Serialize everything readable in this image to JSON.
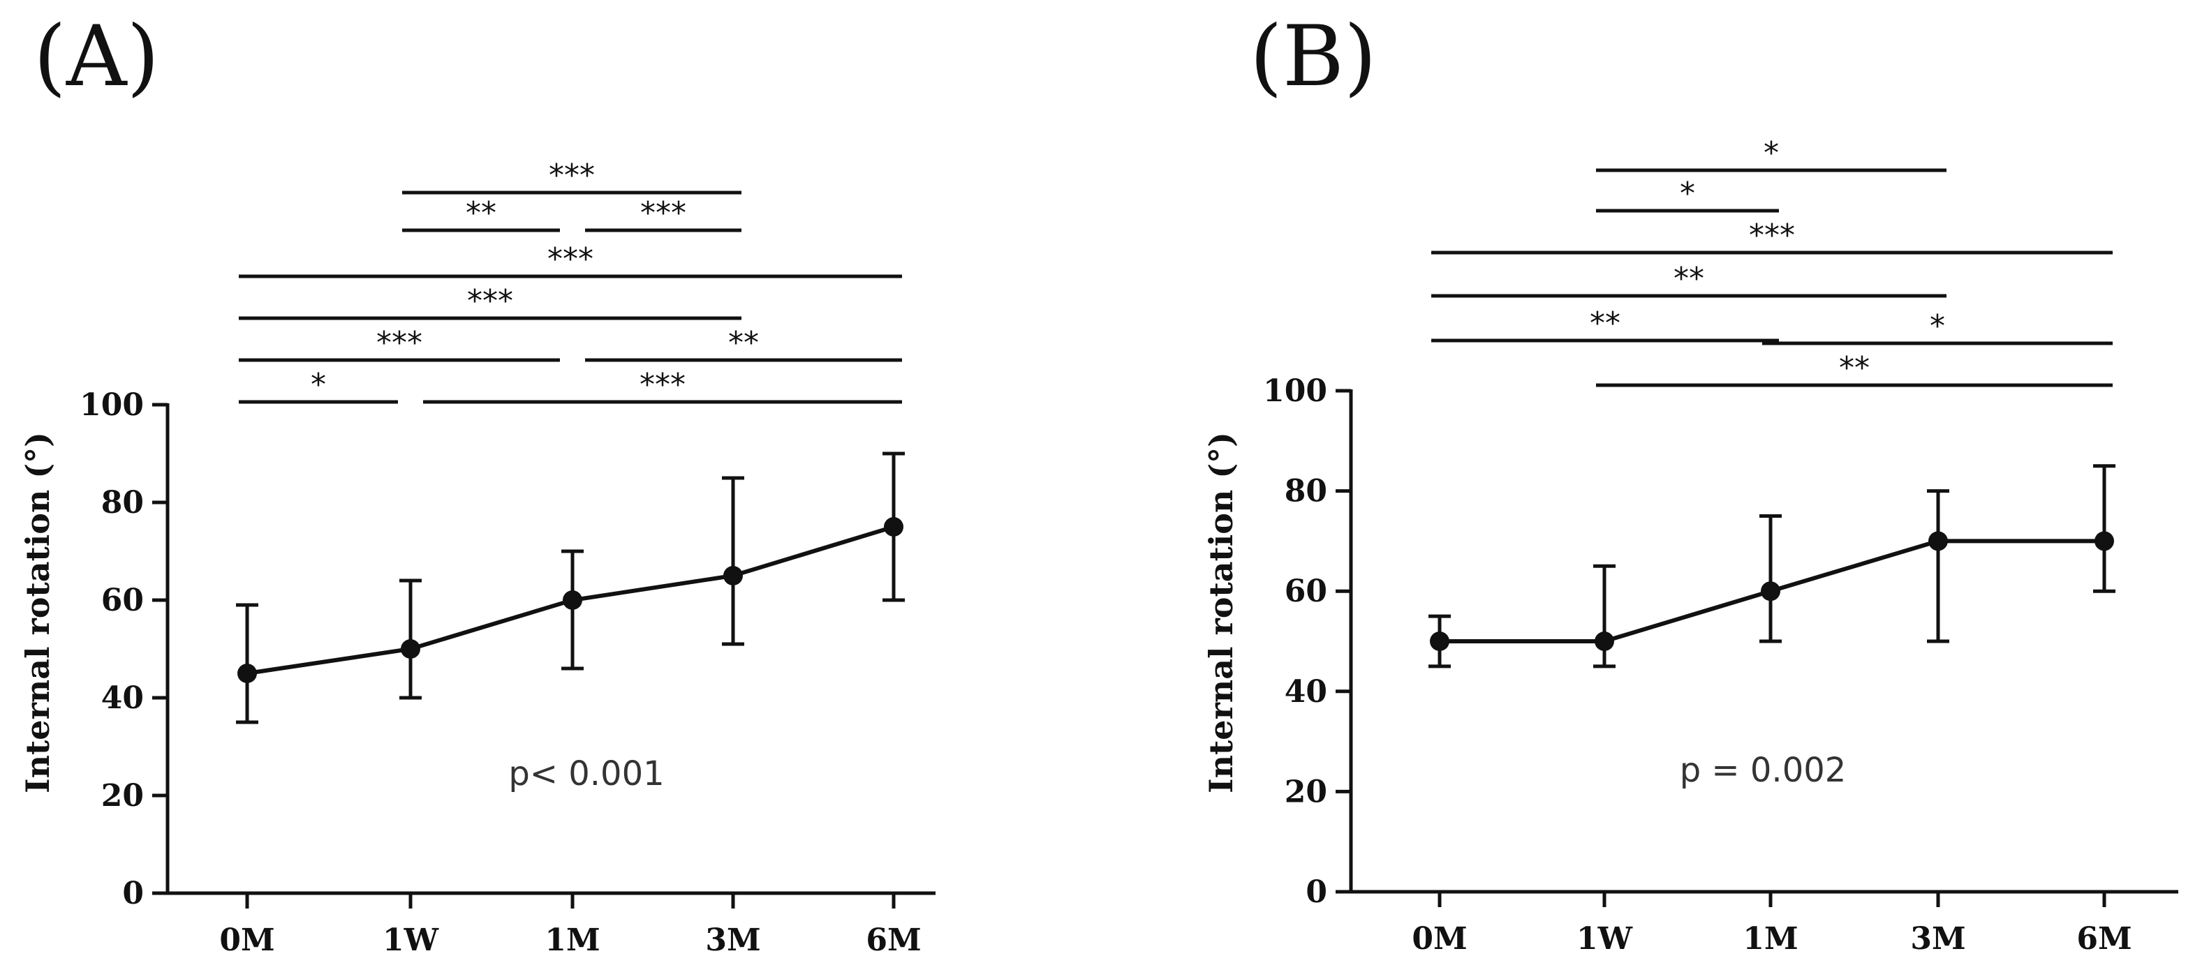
{
  "chart_data": [
    {
      "type": "line",
      "panel_label": "(A)",
      "ylabel": "Internal rotation (°)",
      "xlabel": "",
      "categories": [
        "0M",
        "1W",
        "1M",
        "3M",
        "6M"
      ],
      "ylim": [
        0,
        100
      ],
      "yticks": [
        0,
        20,
        40,
        60,
        80,
        100
      ],
      "ytick_labels": [
        "0",
        "20",
        "40",
        "60",
        "80",
        "100"
      ],
      "series": [
        {
          "name": "Internal rotation",
          "values": [
            45,
            50,
            60,
            65,
            75
          ],
          "error_low": [
            35,
            40,
            46,
            51,
            60
          ],
          "error_high": [
            59,
            64,
            70,
            85,
            90
          ]
        }
      ],
      "annotation": "p< 0.001",
      "comparisons": [
        {
          "from": "0M",
          "to": "1W",
          "label": "*"
        },
        {
          "from": "1W",
          "to": "6M",
          "label": "***"
        },
        {
          "from": "0M",
          "to": "1M",
          "label": "***"
        },
        {
          "from": "1M",
          "to": "6M",
          "label": "**"
        },
        {
          "from": "0M",
          "to": "3M",
          "label": "***"
        },
        {
          "from": "0M",
          "to": "6M",
          "label": "***"
        },
        {
          "from": "1W",
          "to": "1M",
          "label": "**"
        },
        {
          "from": "1M",
          "to": "3M",
          "label": "***"
        },
        {
          "from": "1W",
          "to": "3M",
          "label": "***"
        }
      ]
    },
    {
      "type": "line",
      "panel_label": "(B)",
      "ylabel": "Internal rotation (°)",
      "xlabel": "",
      "categories": [
        "0M",
        "1W",
        "1M",
        "3M",
        "6M"
      ],
      "ylim": [
        0,
        100
      ],
      "yticks": [
        0,
        20,
        40,
        60,
        80,
        100
      ],
      "ytick_labels": [
        "0",
        "20",
        "40",
        "60",
        "80",
        "100"
      ],
      "series": [
        {
          "name": "Internal rotation",
          "values": [
            50,
            50,
            60,
            70,
            70
          ],
          "error_low": [
            45,
            45,
            50,
            50,
            60
          ],
          "error_high": [
            55,
            65,
            75,
            80,
            85
          ]
        }
      ],
      "annotation": "p = 0.002",
      "comparisons": [
        {
          "from": "1W",
          "to": "6M",
          "label": "**"
        },
        {
          "from": "0M",
          "to": "1M",
          "label": "**"
        },
        {
          "from": "1M",
          "to": "6M",
          "label": "*"
        },
        {
          "from": "0M",
          "to": "3M",
          "label": "**"
        },
        {
          "from": "0M",
          "to": "6M",
          "label": "***"
        },
        {
          "from": "1W",
          "to": "1M",
          "label": "*"
        },
        {
          "from": "1W",
          "to": "3M",
          "label": "*"
        }
      ]
    }
  ]
}
